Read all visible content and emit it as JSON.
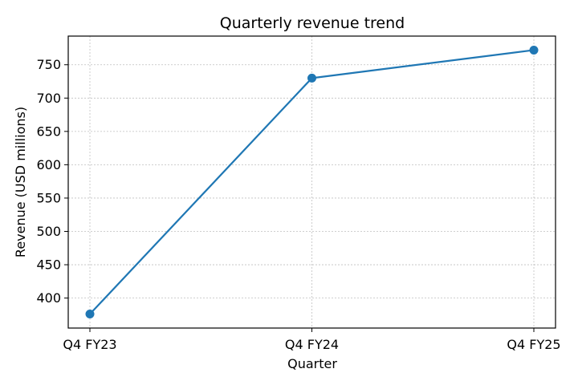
{
  "chart_data": {
    "type": "line",
    "title": "Quarterly revenue trend",
    "xlabel": "Quarter",
    "ylabel": "Revenue (USD millions)",
    "categories": [
      "Q4 FY23",
      "Q4 FY24",
      "Q4 FY25"
    ],
    "series": [
      {
        "values": [
          376,
          730,
          772
        ],
        "color": "#1f77b4"
      }
    ],
    "ylim": [
      355,
      793
    ],
    "yticks": [
      400,
      450,
      500,
      550,
      600,
      650,
      700,
      750
    ],
    "grid": true,
    "legend": "none"
  }
}
